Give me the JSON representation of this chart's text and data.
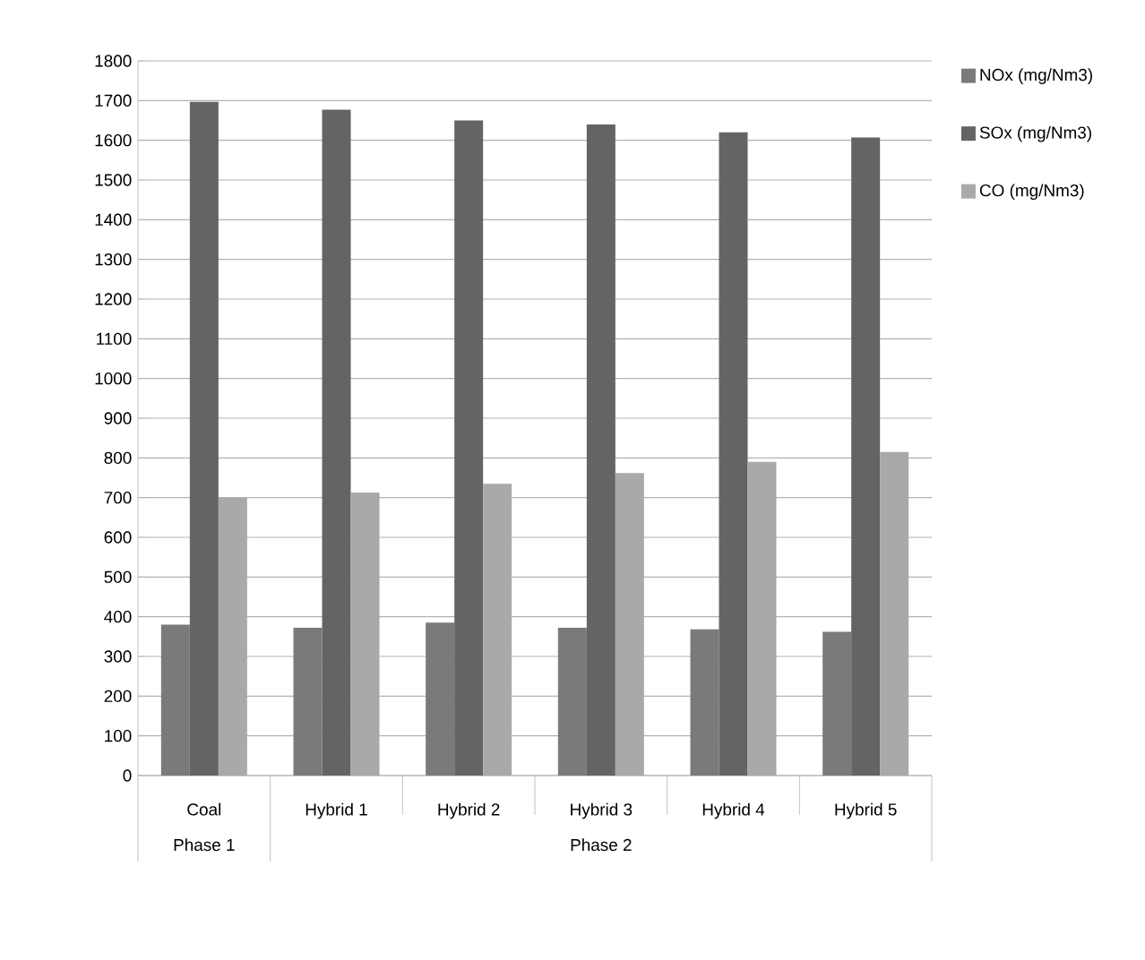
{
  "chart_data": {
    "type": "bar",
    "categories": [
      "Coal",
      "Hybrid 1",
      "Hybrid 2",
      "Hybrid 3",
      "Hybrid 4",
      "Hybrid 5"
    ],
    "series": [
      {
        "name": "NOx (mg/Nm3)",
        "color": "#7a7a7a",
        "values": [
          380,
          372,
          385,
          372,
          368,
          362
        ]
      },
      {
        "name": "SOx (mg/Nm3)",
        "color": "#646464",
        "values": [
          1697,
          1677,
          1650,
          1640,
          1620,
          1607
        ]
      },
      {
        "name": "CO (mg/Nm3)",
        "color": "#a9a9a9",
        "values": [
          700,
          713,
          735,
          762,
          790,
          815
        ]
      }
    ],
    "ylim": [
      0,
      1800
    ],
    "yticks": [
      0,
      100,
      200,
      300,
      400,
      500,
      600,
      700,
      800,
      900,
      1000,
      1100,
      1200,
      1300,
      1400,
      1500,
      1600,
      1700,
      1800
    ],
    "grid": "y",
    "legend": "top right",
    "annotations": [
      "Phase 1",
      "Phase 2"
    ]
  }
}
